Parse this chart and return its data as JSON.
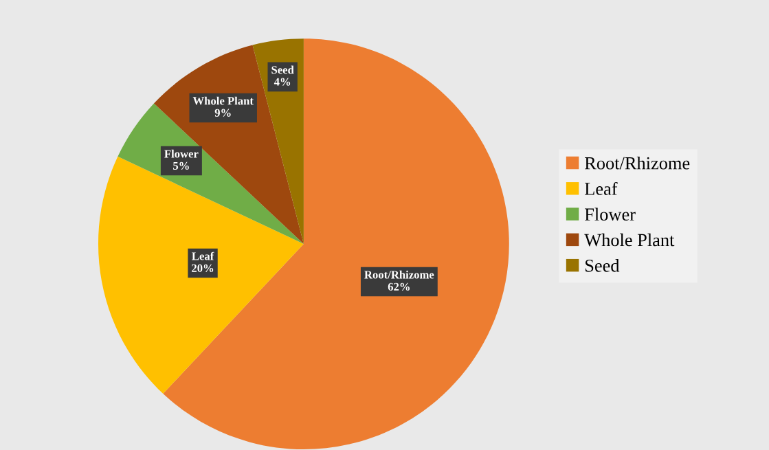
{
  "chart_data": {
    "type": "pie",
    "categories": [
      "Root/Rhizome",
      "Leaf",
      "Flower",
      "Whole Plant",
      "Seed"
    ],
    "values": [
      62,
      20,
      5,
      9,
      4
    ],
    "colors": [
      "#ed7d31",
      "#ffc000",
      "#70ad47",
      "#9e480e",
      "#997300"
    ],
    "value_labels": [
      "62%",
      "20%",
      "5%",
      "9%",
      "4%"
    ],
    "legend": "right"
  }
}
